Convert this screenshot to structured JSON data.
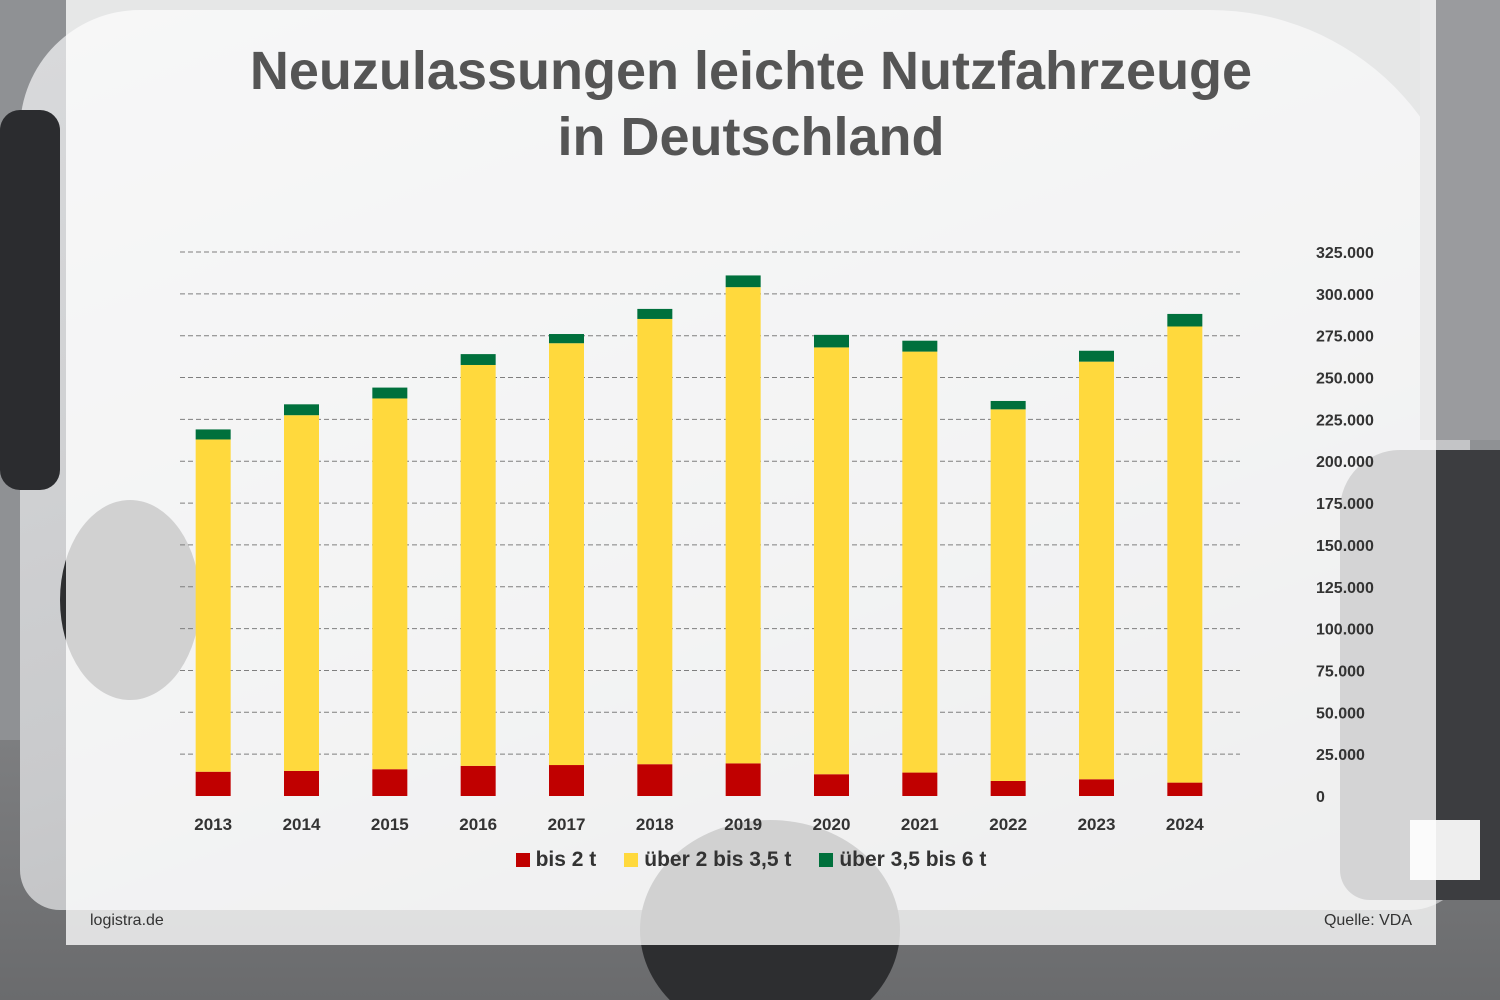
{
  "title_line1": "Neuzulassungen leichte Nutzfahrzeuge",
  "title_line2": "in Deutschland",
  "footer_left": "logistra.de",
  "footer_right": "Quelle: VDA",
  "colors": {
    "red": "#c00000",
    "yellow": "#ffd93d",
    "green": "#00703c",
    "grid": "#7f7f7f"
  },
  "chart_data": {
    "type": "bar",
    "stacked": true,
    "categories": [
      "2013",
      "2014",
      "2015",
      "2016",
      "2017",
      "2018",
      "2019",
      "2020",
      "2021",
      "2022",
      "2023",
      "2024"
    ],
    "series": [
      {
        "name": "bis 2 t",
        "color": "#c00000",
        "values": [
          14500,
          15000,
          16000,
          18000,
          18500,
          19000,
          19500,
          13000,
          14000,
          9000,
          10000,
          8000
        ]
      },
      {
        "name": "über 2 bis 3,5 t",
        "color": "#ffd93d",
        "values": [
          198500,
          212500,
          221500,
          239500,
          252000,
          266000,
          284500,
          255000,
          251500,
          222000,
          249500,
          272500
        ]
      },
      {
        "name": "über 3,5 bis 6 t",
        "color": "#00703c",
        "values": [
          6000,
          6500,
          6500,
          6500,
          5500,
          6000,
          7000,
          7500,
          6500,
          5000,
          6500,
          7500
        ]
      }
    ],
    "ylim": [
      0,
      325000
    ],
    "yticks": [
      "0",
      "25.000",
      "50.000",
      "75.000",
      "100.000",
      "125.000",
      "150.000",
      "175.000",
      "200.000",
      "225.000",
      "250.000",
      "275.000",
      "300.000",
      "325.000"
    ],
    "ytick_step": 25000,
    "grid": true,
    "yaxis_side": "right",
    "legend_position": "bottom"
  }
}
